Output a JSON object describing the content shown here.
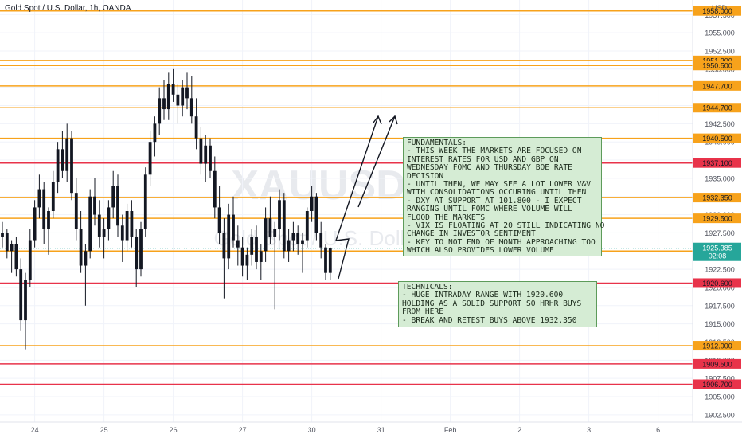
{
  "header": {
    "title": "Gold Spot / U.S. Dollar, 1h, OANDA",
    "currency": "USD"
  },
  "watermark": {
    "symbol": "XAUUSD",
    "name": "Gold Spot / U.S. Dollar"
  },
  "fundamentals_note": {
    "lines": [
      "FUNDAMENTALS:",
      "- THIS WEEK THE MARKETS ARE FOCUSED ON",
      "INTEREST RATES FOR USD AND GBP ON",
      "WEDNESDAY FOMC AND THURSDAY BOE RATE",
      "DECISION",
      "- UNTIL THEN, WE MAY SEE A LOT LOWER V&V",
      "WITH CONSOLIDATIONS OCCURING UNTIL THEN",
      "- DXY AT SUPPORT AT 101.800 - I EXPECT",
      "RANGING UNTIL FOMC WHERE VOLUME WILL",
      "FLOOD THE MARKETS",
      "- VIX IS FLOATING AT 20 STILL INDICATING NO",
      "CHANGE IN INVESTOR SENTIMENT",
      "- KEY TO NOT END OF MONTH APPROACHING TOO",
      "WHICH ALSO PROVIDES LOWER VOLUME"
    ]
  },
  "technicals_note": {
    "lines": [
      "TECHNICALS:",
      "- HUGE INTRADAY RANGE WITH 1920.600",
      "HOLDING AS A SOLID SUPPORT SO HRHR BUYS",
      "FROM HERE",
      "- BREAK AND RETEST BUYS ABOVE 1932.350"
    ]
  },
  "chart_data": {
    "type": "candlestick",
    "title": "Gold Spot / U.S. Dollar, 1h, OANDA",
    "ylim": [
      1901.5,
      1959.5
    ],
    "y_ticks": [
      "1902.500",
      "1905.000",
      "1907.500",
      "1910.000",
      "1912.500",
      "1915.000",
      "1917.500",
      "1920.000",
      "1922.500",
      "1925.000",
      "1927.500",
      "1930.000",
      "1932.500",
      "1935.000",
      "1937.500",
      "1940.000",
      "1942.500",
      "1945.000",
      "1947.500",
      "1950.000",
      "1952.500",
      "1955.000",
      "1957.500"
    ],
    "x_ticks": [
      {
        "label": "24",
        "slot": 7
      },
      {
        "label": "25",
        "slot": 22
      },
      {
        "label": "26",
        "slot": 37
      },
      {
        "label": "27",
        "slot": 52
      },
      {
        "label": "30",
        "slot": 67
      },
      {
        "label": "31",
        "slot": 82
      },
      {
        "label": "Feb",
        "slot": 97
      },
      {
        "label": "2",
        "slot": 112
      },
      {
        "label": "3",
        "slot": 127
      },
      {
        "label": "6",
        "slot": 142
      }
    ],
    "levels": [
      {
        "value": 1958.0,
        "label": "1958.000",
        "color": "#f7a21b"
      },
      {
        "value": 1951.2,
        "label": "1951.200",
        "color": "#f7a21b"
      },
      {
        "value": 1950.5,
        "label": "1950.500",
        "color": "#f7a21b"
      },
      {
        "value": 1947.7,
        "label": "1947.700",
        "color": "#f7a21b"
      },
      {
        "value": 1944.7,
        "label": "1944.700",
        "color": "#f7a21b"
      },
      {
        "value": 1940.5,
        "label": "1940.500",
        "color": "#f7a21b"
      },
      {
        "value": 1937.1,
        "label": "1937.100",
        "color": "#e8334a"
      },
      {
        "value": 1932.35,
        "label": "1932.350",
        "color": "#f7a21b"
      },
      {
        "value": 1929.5,
        "label": "1929.500",
        "color": "#f7a21b"
      },
      {
        "value": 1925.0,
        "label": "1925.000",
        "color": "#f7a21b"
      },
      {
        "value": 1920.6,
        "label": "1920.600",
        "color": "#e8334a"
      },
      {
        "value": 1912.0,
        "label": "1912.000",
        "color": "#f7a21b"
      },
      {
        "value": 1909.5,
        "label": "1909.500",
        "color": "#e8334a"
      },
      {
        "value": 1906.7,
        "label": "1906.700",
        "color": "#e8334a"
      }
    ],
    "last_price": {
      "value": 1925.385,
      "label": "1925.385",
      "countdown": "02:08",
      "color": "#26a69a"
    },
    "candles": [
      [
        1927.0,
        1929.0,
        1925.5,
        1927.5
      ],
      [
        1927.5,
        1928.0,
        1924.0,
        1925.0
      ],
      [
        1925.0,
        1926.5,
        1922.0,
        1926.0
      ],
      [
        1926.0,
        1927.0,
        1921.5,
        1922.5
      ],
      [
        1922.5,
        1924.0,
        1914.0,
        1915.5
      ],
      [
        1915.5,
        1922.0,
        1911.5,
        1921.0
      ],
      [
        1921.0,
        1928.0,
        1920.0,
        1926.5
      ],
      [
        1926.5,
        1932.0,
        1925.5,
        1931.0
      ],
      [
        1931.0,
        1935.5,
        1929.5,
        1933.5
      ],
      [
        1933.5,
        1934.5,
        1926.0,
        1928.0
      ],
      [
        1928.0,
        1931.0,
        1924.5,
        1930.5
      ],
      [
        1930.5,
        1936.0,
        1929.5,
        1934.5
      ],
      [
        1934.5,
        1940.0,
        1933.0,
        1939.0
      ],
      [
        1939.0,
        1941.5,
        1935.0,
        1936.0
      ],
      [
        1936.0,
        1942.5,
        1934.5,
        1940.5
      ],
      [
        1940.5,
        1941.5,
        1932.0,
        1933.0
      ],
      [
        1933.0,
        1935.0,
        1926.5,
        1928.0
      ],
      [
        1928.0,
        1930.5,
        1922.0,
        1923.0
      ],
      [
        1923.0,
        1926.0,
        1917.5,
        1925.0
      ],
      [
        1925.0,
        1933.5,
        1924.0,
        1932.5
      ],
      [
        1932.5,
        1935.0,
        1928.5,
        1930.0
      ],
      [
        1930.0,
        1932.0,
        1925.5,
        1927.0
      ],
      [
        1927.0,
        1929.5,
        1924.0,
        1928.0
      ],
      [
        1928.0,
        1932.0,
        1926.5,
        1931.0
      ],
      [
        1931.0,
        1936.0,
        1929.5,
        1934.0
      ],
      [
        1934.0,
        1935.5,
        1927.0,
        1928.5
      ],
      [
        1928.5,
        1930.0,
        1923.5,
        1926.5
      ],
      [
        1926.5,
        1931.5,
        1925.0,
        1930.5
      ],
      [
        1930.5,
        1932.0,
        1925.5,
        1927.0
      ],
      [
        1927.0,
        1928.0,
        1920.0,
        1922.5
      ],
      [
        1922.5,
        1929.0,
        1921.5,
        1928.0
      ],
      [
        1928.0,
        1936.5,
        1927.0,
        1935.5
      ],
      [
        1935.5,
        1941.5,
        1934.0,
        1940.0
      ],
      [
        1940.0,
        1943.5,
        1938.0,
        1942.5
      ],
      [
        1942.5,
        1947.5,
        1941.0,
        1946.0
      ],
      [
        1946.0,
        1948.5,
        1943.0,
        1944.5
      ],
      [
        1944.5,
        1949.5,
        1943.0,
        1948.0
      ],
      [
        1948.0,
        1950.0,
        1945.5,
        1946.5
      ],
      [
        1946.5,
        1948.0,
        1942.5,
        1945.0
      ],
      [
        1945.0,
        1948.5,
        1943.5,
        1947.5
      ],
      [
        1947.5,
        1949.5,
        1944.5,
        1946.0
      ],
      [
        1946.0,
        1949.0,
        1942.5,
        1943.5
      ],
      [
        1943.5,
        1946.0,
        1939.0,
        1940.5
      ],
      [
        1940.5,
        1942.0,
        1935.5,
        1937.0
      ],
      [
        1937.0,
        1941.0,
        1934.5,
        1939.5
      ],
      [
        1939.5,
        1940.5,
        1935.0,
        1936.0
      ],
      [
        1936.0,
        1938.0,
        1929.5,
        1931.0
      ],
      [
        1931.0,
        1934.0,
        1926.0,
        1927.5
      ],
      [
        1927.5,
        1929.5,
        1918.5,
        1924.0
      ],
      [
        1924.0,
        1931.5,
        1922.5,
        1930.0
      ],
      [
        1930.0,
        1932.5,
        1925.5,
        1926.5
      ],
      [
        1926.5,
        1928.5,
        1923.0,
        1925.5
      ],
      [
        1925.5,
        1927.0,
        1921.5,
        1923.0
      ],
      [
        1923.0,
        1925.5,
        1921.0,
        1924.5
      ],
      [
        1924.5,
        1928.0,
        1923.0,
        1927.0
      ],
      [
        1927.0,
        1928.5,
        1922.5,
        1923.5
      ],
      [
        1923.5,
        1926.0,
        1921.0,
        1925.0
      ],
      [
        1925.0,
        1931.0,
        1923.5,
        1929.5
      ],
      [
        1929.5,
        1932.5,
        1926.0,
        1927.0
      ],
      [
        1927.0,
        1929.0,
        1917.0,
        1928.0
      ],
      [
        1928.0,
        1933.5,
        1926.5,
        1932.0
      ],
      [
        1932.0,
        1933.0,
        1924.0,
        1925.0
      ],
      [
        1925.0,
        1928.0,
        1923.5,
        1926.5
      ],
      [
        1926.5,
        1929.0,
        1925.0,
        1927.5
      ],
      [
        1927.5,
        1928.5,
        1924.5,
        1926.0
      ],
      [
        1926.0,
        1927.5,
        1922.0,
        1926.5
      ],
      [
        1926.5,
        1931.0,
        1925.5,
        1930.5
      ],
      [
        1930.5,
        1934.0,
        1929.0,
        1932.5
      ],
      [
        1932.5,
        1933.0,
        1926.5,
        1927.5
      ],
      [
        1927.5,
        1929.0,
        1924.0,
        1925.5
      ],
      [
        1925.5,
        1926.0,
        1921.0,
        1922.0
      ],
      [
        1922.0,
        1925.5,
        1921.0,
        1925.385
      ]
    ],
    "annotations": [
      "zigzag arrows projecting upward toward 1944.700"
    ]
  }
}
